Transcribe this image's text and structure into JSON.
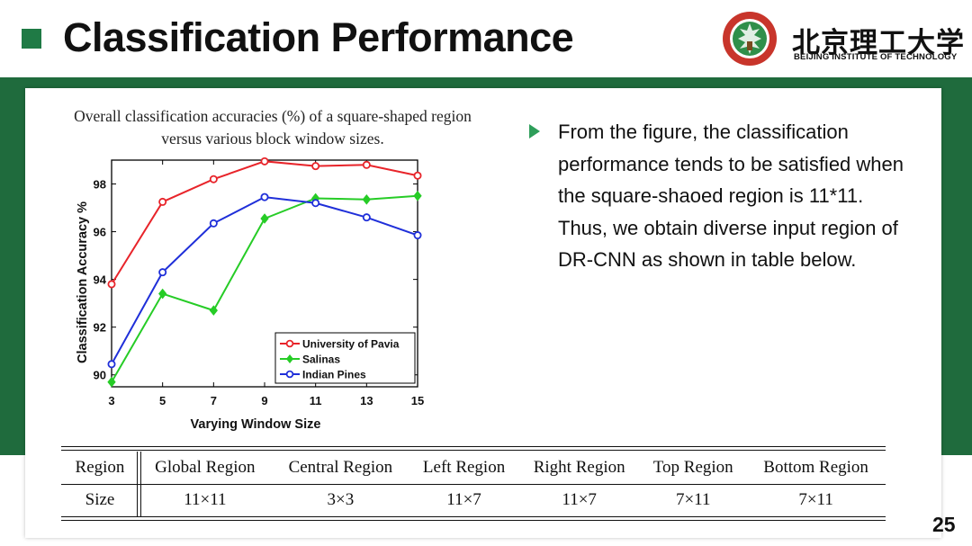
{
  "header": {
    "title": "Classification Performance",
    "university_cn": "北京理工大学",
    "university_en": "BEIJING INSTITUTE OF TECHNOLOGY"
  },
  "figure_caption": "Overall classification accuracies (%) of a square-shaped region versus various block window sizes.",
  "bullet": "From the figure, the classification performance tends to be satisfied when the square-shaoed region is 11*11. Thus, we obtain diverse input region of DR-CNN as shown in table below.",
  "table": {
    "header": [
      "Region",
      "Global Region",
      "Central Region",
      "Left Region",
      "Right Region",
      "Top Region",
      "Bottom Region"
    ],
    "row": [
      "Size",
      "11×11",
      "3×3",
      "11×7",
      "11×7",
      "7×11",
      "7×11"
    ]
  },
  "page_number": "25",
  "colors": {
    "accent_green": "#1f6b3d",
    "title_square": "#1f7a45",
    "bullet_arrow": "#2e9e5a"
  },
  "chart_data": {
    "type": "line",
    "xlabel": "Varying Window Size",
    "ylabel": "Classification Accuracy %",
    "x": [
      3,
      5,
      7,
      9,
      11,
      13,
      15
    ],
    "xticks": [
      "3",
      "5",
      "7",
      "9",
      "11",
      "13",
      "15"
    ],
    "yticks": [
      "90",
      "92",
      "94",
      "96",
      "98"
    ],
    "xlim": [
      3,
      15
    ],
    "ylim": [
      89.5,
      99
    ],
    "legend_position": "bottom-right",
    "grid": false,
    "series": [
      {
        "name": "University of Pavia",
        "color": "#e8242a",
        "marker": "circle",
        "values": [
          93.8,
          97.25,
          98.2,
          98.95,
          98.75,
          98.8,
          98.35
        ]
      },
      {
        "name": "Salinas",
        "color": "#26cc26",
        "marker": "diamond",
        "values": [
          89.7,
          93.4,
          92.7,
          96.55,
          97.4,
          97.35,
          97.5
        ]
      },
      {
        "name": "Indian Pines",
        "color": "#1f2fd9",
        "marker": "circle",
        "values": [
          90.45,
          94.3,
          96.35,
          97.45,
          97.2,
          96.6,
          95.85
        ]
      }
    ]
  }
}
